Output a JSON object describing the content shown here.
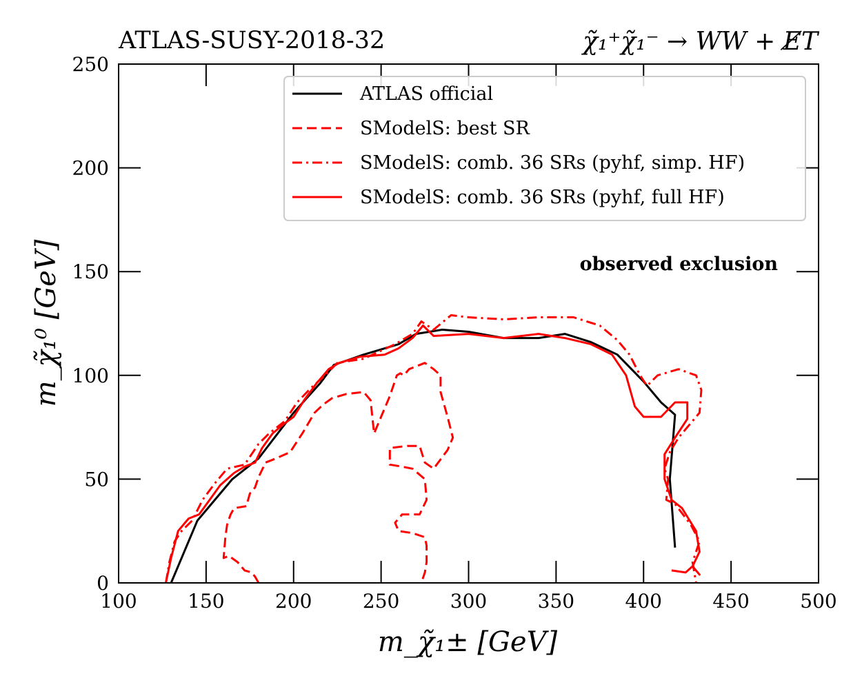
{
  "chart_data": {
    "type": "line",
    "title_left": "ATLAS-SUSY-2018-32",
    "title_right": "χ̃₁⁺χ̃₁⁻ → WW + E̸T",
    "xlabel": "m_χ̃₁± [GeV]",
    "ylabel": "m_χ̃₁⁰ [GeV]",
    "xlim": [
      100,
      500
    ],
    "ylim": [
      0,
      250
    ],
    "xticks": [
      100,
      150,
      200,
      250,
      300,
      350,
      400,
      450,
      500
    ],
    "yticks": [
      0,
      50,
      100,
      150,
      200,
      250
    ],
    "annotation": "observed exclusion",
    "legend_position": "top-right",
    "series": [
      {
        "name": "ATLAS official",
        "color": "#000000",
        "style": "solid",
        "points": [
          [
            130,
            0
          ],
          [
            145,
            30
          ],
          [
            165,
            50
          ],
          [
            180,
            60
          ],
          [
            200,
            82
          ],
          [
            215,
            96
          ],
          [
            223,
            105
          ],
          [
            240,
            110
          ],
          [
            260,
            115
          ],
          [
            270,
            120
          ],
          [
            285,
            122
          ],
          [
            300,
            121
          ],
          [
            320,
            118
          ],
          [
            340,
            118
          ],
          [
            355,
            120
          ],
          [
            370,
            116
          ],
          [
            385,
            110
          ],
          [
            400,
            97
          ],
          [
            410,
            87
          ],
          [
            418,
            81
          ],
          [
            415,
            50
          ],
          [
            418,
            17
          ]
        ]
      },
      {
        "name": "SModelS: best SR",
        "color": "#ff0000",
        "style": "dashed",
        "points": [
          [
            180,
            0
          ],
          [
            178,
            3
          ],
          [
            176,
            5
          ],
          [
            172,
            6
          ],
          [
            168,
            10
          ],
          [
            163,
            13
          ],
          [
            160,
            12
          ],
          [
            161,
            22
          ],
          [
            162,
            28
          ],
          [
            164,
            33
          ],
          [
            166,
            36
          ],
          [
            173,
            37
          ],
          [
            175,
            43
          ],
          [
            178,
            46
          ],
          [
            180,
            51
          ],
          [
            184,
            58
          ],
          [
            190,
            60
          ],
          [
            198,
            63
          ],
          [
            205,
            72
          ],
          [
            212,
            82
          ],
          [
            217,
            86
          ],
          [
            222,
            89
          ],
          [
            230,
            91
          ],
          [
            240,
            92
          ],
          [
            244,
            88
          ],
          [
            245,
            80
          ],
          [
            246,
            72
          ],
          [
            250,
            80
          ],
          [
            255,
            90
          ],
          [
            259,
            100
          ],
          [
            261,
            101
          ],
          [
            263,
            100
          ],
          [
            266,
            103
          ],
          [
            275,
            106
          ],
          [
            280,
            103
          ],
          [
            284,
            100
          ],
          [
            284,
            92
          ],
          [
            288,
            80
          ],
          [
            291,
            70
          ],
          [
            288,
            64
          ],
          [
            280,
            55
          ],
          [
            275,
            58
          ],
          [
            272,
            66
          ],
          [
            265,
            66
          ],
          [
            255,
            65
          ],
          [
            255,
            57
          ],
          [
            262,
            56
          ],
          [
            268,
            55
          ],
          [
            275,
            50
          ],
          [
            276,
            40
          ],
          [
            272,
            33
          ],
          [
            262,
            33
          ],
          [
            258,
            29
          ],
          [
            260,
            25
          ],
          [
            268,
            24
          ],
          [
            275,
            22
          ],
          [
            276,
            18
          ],
          [
            276,
            10
          ],
          [
            275,
            5
          ],
          [
            273,
            0
          ]
        ]
      },
      {
        "name": "SModelS: comb. 36 SRs (pyhf, simp. HF)",
        "color": "#ff0000",
        "style": "dashdot",
        "points": [
          [
            127,
            0
          ],
          [
            129,
            10
          ],
          [
            132,
            20
          ],
          [
            136,
            25
          ],
          [
            142,
            30
          ],
          [
            148,
            40
          ],
          [
            155,
            48
          ],
          [
            162,
            55
          ],
          [
            172,
            57
          ],
          [
            180,
            67
          ],
          [
            186,
            72
          ],
          [
            195,
            78
          ],
          [
            202,
            87
          ],
          [
            210,
            94
          ],
          [
            218,
            100
          ],
          [
            225,
            106
          ],
          [
            240,
            108
          ],
          [
            258,
            115
          ],
          [
            268,
            120
          ],
          [
            273,
            126
          ],
          [
            280,
            122
          ],
          [
            290,
            129
          ],
          [
            300,
            128
          ],
          [
            320,
            127
          ],
          [
            340,
            128
          ],
          [
            360,
            128
          ],
          [
            375,
            124
          ],
          [
            385,
            117
          ],
          [
            392,
            110
          ],
          [
            398,
            100
          ],
          [
            402,
            95
          ],
          [
            408,
            100
          ],
          [
            420,
            103
          ],
          [
            430,
            100
          ],
          [
            433,
            93
          ],
          [
            432,
            82
          ],
          [
            420,
            70
          ],
          [
            415,
            63
          ],
          [
            412,
            55
          ],
          [
            414,
            50
          ],
          [
            413,
            40
          ],
          [
            418,
            38
          ],
          [
            427,
            28
          ],
          [
            432,
            20
          ],
          [
            428,
            10
          ],
          [
            430,
            0
          ]
        ]
      },
      {
        "name": "SModelS: comb. 36 SRs (pyhf, full HF)",
        "color": "#ff0000",
        "style": "solid",
        "points": [
          [
            127,
            0
          ],
          [
            130,
            12
          ],
          [
            134,
            25
          ],
          [
            140,
            31
          ],
          [
            146,
            33
          ],
          [
            152,
            40
          ],
          [
            158,
            47
          ],
          [
            166,
            53
          ],
          [
            172,
            56
          ],
          [
            178,
            58
          ],
          [
            182,
            65
          ],
          [
            188,
            72
          ],
          [
            195,
            77
          ],
          [
            200,
            80
          ],
          [
            206,
            88
          ],
          [
            213,
            96
          ],
          [
            220,
            103
          ],
          [
            226,
            106
          ],
          [
            238,
            109
          ],
          [
            252,
            110
          ],
          [
            260,
            113
          ],
          [
            268,
            118
          ],
          [
            274,
            124
          ],
          [
            280,
            119
          ],
          [
            300,
            120
          ],
          [
            320,
            118
          ],
          [
            340,
            120
          ],
          [
            355,
            118
          ],
          [
            370,
            115
          ],
          [
            382,
            110
          ],
          [
            390,
            100
          ],
          [
            395,
            85
          ],
          [
            400,
            80
          ],
          [
            410,
            80
          ],
          [
            418,
            87
          ],
          [
            425,
            87
          ],
          [
            425,
            79
          ],
          [
            418,
            70
          ],
          [
            412,
            62
          ],
          [
            412,
            50
          ],
          [
            416,
            40
          ],
          [
            422,
            36
          ],
          [
            430,
            25
          ],
          [
            432,
            15
          ],
          [
            428,
            8
          ],
          [
            432,
            4
          ],
          [
            428,
            8
          ],
          [
            424,
            5
          ],
          [
            416,
            6
          ]
        ]
      }
    ]
  }
}
